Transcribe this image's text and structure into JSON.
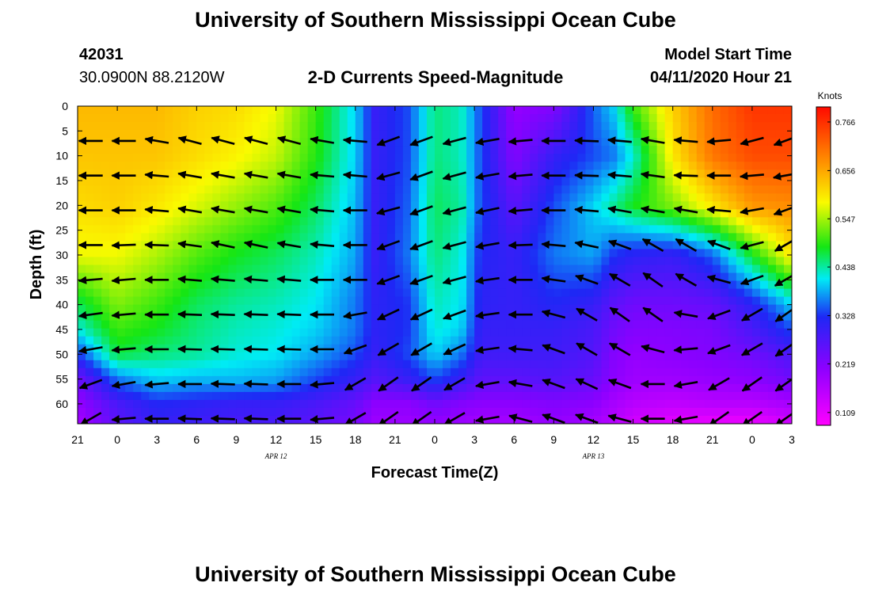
{
  "page": {
    "title_top": "University of Southern Mississippi Ocean Cube",
    "title_bottom": "University of Southern Mississippi Ocean Cube",
    "station_id": "42031",
    "station_coords": "30.0900N 88.2120W",
    "plot_title": "2-D Currents Speed-Magnitude",
    "model_label": "Model Start Time",
    "model_time": "04/11/2020 Hour 21"
  },
  "colors": {
    "arrow": "#000000",
    "colormap_low": "#ff00ff",
    "colormap_high": "#ff0000"
  },
  "chart_data": {
    "type": "heatmap",
    "title": "2-D Currents Speed-Magnitude",
    "xlabel": "Forecast Time(Z)",
    "ylabel": "Depth (ft)",
    "colorbar_label": "Knots",
    "x_tick_labels": [
      "21",
      "0",
      "3",
      "6",
      "9",
      "12",
      "15",
      "18",
      "21",
      "0",
      "3",
      "6",
      "9",
      "12",
      "15",
      "18",
      "21",
      "0",
      "3"
    ],
    "x_range_hours": [
      0,
      54
    ],
    "date_labels": [
      {
        "text": "APR 12",
        "hour": 15
      },
      {
        "text": "APR 13",
        "hour": 39
      }
    ],
    "y_tick_labels": [
      "0",
      "5",
      "10",
      "15",
      "20",
      "25",
      "30",
      "35",
      "40",
      "45",
      "50",
      "55",
      "60"
    ],
    "ylim": [
      0,
      64
    ],
    "y_reversed": true,
    "colorbar_ticks": [
      "0.766",
      "0.656",
      "0.547",
      "0.438",
      "0.328",
      "0.219",
      "0.109"
    ],
    "colorbar_range": [
      0.08,
      0.8
    ],
    "speed_grid_hours": [
      0,
      3,
      6,
      9,
      12,
      15,
      18,
      21,
      22.5,
      25,
      27,
      29,
      30.5,
      33,
      36,
      39,
      40.5,
      42,
      45,
      48,
      51,
      54
    ],
    "speed_grid_depths": [
      0,
      10,
      20,
      30,
      40,
      45,
      50,
      55,
      60,
      64
    ],
    "speed_knots": [
      [
        0.64,
        0.64,
        0.64,
        0.62,
        0.61,
        0.58,
        0.5,
        0.4,
        0.3,
        0.34,
        0.45,
        0.43,
        0.34,
        0.2,
        0.22,
        0.35,
        0.4,
        0.5,
        0.62,
        0.71,
        0.76,
        0.76
      ],
      [
        0.63,
        0.63,
        0.63,
        0.61,
        0.59,
        0.56,
        0.49,
        0.4,
        0.3,
        0.34,
        0.45,
        0.43,
        0.34,
        0.22,
        0.3,
        0.34,
        0.36,
        0.42,
        0.6,
        0.7,
        0.74,
        0.74
      ],
      [
        0.61,
        0.62,
        0.6,
        0.57,
        0.54,
        0.51,
        0.46,
        0.39,
        0.3,
        0.35,
        0.46,
        0.44,
        0.34,
        0.26,
        0.34,
        0.4,
        0.44,
        0.48,
        0.53,
        0.6,
        0.67,
        0.68
      ],
      [
        0.58,
        0.58,
        0.55,
        0.51,
        0.48,
        0.46,
        0.43,
        0.38,
        0.3,
        0.36,
        0.45,
        0.42,
        0.32,
        0.3,
        0.36,
        0.38,
        0.33,
        0.31,
        0.3,
        0.35,
        0.48,
        0.6
      ],
      [
        0.46,
        0.53,
        0.5,
        0.46,
        0.44,
        0.43,
        0.41,
        0.36,
        0.31,
        0.33,
        0.43,
        0.41,
        0.31,
        0.3,
        0.32,
        0.3,
        0.26,
        0.24,
        0.24,
        0.25,
        0.31,
        0.4
      ],
      [
        0.42,
        0.5,
        0.48,
        0.45,
        0.43,
        0.42,
        0.4,
        0.36,
        0.31,
        0.33,
        0.42,
        0.4,
        0.3,
        0.3,
        0.3,
        0.28,
        0.24,
        0.22,
        0.22,
        0.23,
        0.28,
        0.34
      ],
      [
        0.33,
        0.47,
        0.45,
        0.44,
        0.42,
        0.41,
        0.38,
        0.34,
        0.3,
        0.34,
        0.4,
        0.36,
        0.29,
        0.29,
        0.29,
        0.27,
        0.22,
        0.2,
        0.21,
        0.22,
        0.24,
        0.28
      ],
      [
        0.24,
        0.36,
        0.4,
        0.39,
        0.39,
        0.38,
        0.34,
        0.3,
        0.27,
        0.3,
        0.34,
        0.3,
        0.26,
        0.26,
        0.27,
        0.25,
        0.21,
        0.19,
        0.19,
        0.2,
        0.21,
        0.24
      ],
      [
        0.2,
        0.28,
        0.32,
        0.31,
        0.3,
        0.3,
        0.28,
        0.25,
        0.21,
        0.21,
        0.24,
        0.22,
        0.21,
        0.21,
        0.22,
        0.21,
        0.18,
        0.16,
        0.15,
        0.16,
        0.16,
        0.18
      ],
      [
        0.18,
        0.26,
        0.3,
        0.29,
        0.28,
        0.28,
        0.26,
        0.23,
        0.19,
        0.19,
        0.2,
        0.19,
        0.18,
        0.18,
        0.2,
        0.18,
        0.16,
        0.13,
        0.11,
        0.1,
        0.1,
        0.13
      ]
    ],
    "vector_hours": [
      1,
      3.5,
      6,
      8.5,
      11,
      13.5,
      16,
      18.5,
      21,
      23.5,
      26,
      28.5,
      31,
      33.5,
      36,
      38.5,
      41,
      43.5,
      46,
      48.5,
      51,
      53.5
    ],
    "vector_depths": [
      7,
      14,
      21,
      28,
      35,
      42,
      49,
      56,
      63
    ],
    "vector_direction_deg": [
      [
        180,
        180,
        170,
        165,
        165,
        165,
        165,
        170,
        175,
        200,
        200,
        195,
        190,
        185,
        180,
        178,
        175,
        170,
        175,
        185,
        195,
        200
      ],
      [
        180,
        180,
        175,
        170,
        170,
        170,
        170,
        175,
        175,
        195,
        200,
        195,
        190,
        185,
        180,
        178,
        175,
        172,
        178,
        180,
        185,
        190
      ],
      [
        180,
        180,
        175,
        170,
        170,
        170,
        170,
        175,
        180,
        195,
        200,
        195,
        192,
        185,
        180,
        175,
        170,
        170,
        170,
        175,
        190,
        200
      ],
      [
        180,
        182,
        178,
        172,
        168,
        168,
        170,
        175,
        180,
        200,
        200,
        195,
        190,
        182,
        175,
        168,
        160,
        150,
        150,
        160,
        195,
        210
      ],
      [
        185,
        185,
        180,
        175,
        175,
        175,
        175,
        180,
        180,
        200,
        200,
        195,
        188,
        180,
        172,
        160,
        150,
        145,
        150,
        165,
        200,
        210
      ],
      [
        188,
        185,
        180,
        178,
        178,
        178,
        178,
        180,
        190,
        205,
        205,
        200,
        188,
        180,
        165,
        150,
        145,
        145,
        170,
        200,
        210,
        215
      ],
      [
        190,
        185,
        180,
        178,
        178,
        178,
        178,
        180,
        200,
        210,
        210,
        205,
        188,
        175,
        160,
        150,
        150,
        165,
        185,
        200,
        210,
        215
      ],
      [
        200,
        190,
        185,
        180,
        178,
        178,
        180,
        185,
        210,
        215,
        215,
        210,
        190,
        170,
        160,
        155,
        160,
        180,
        190,
        210,
        215,
        215
      ],
      [
        210,
        185,
        180,
        178,
        178,
        178,
        180,
        185,
        210,
        215,
        215,
        210,
        190,
        165,
        160,
        160,
        165,
        180,
        190,
        215,
        215,
        215
      ]
    ]
  }
}
